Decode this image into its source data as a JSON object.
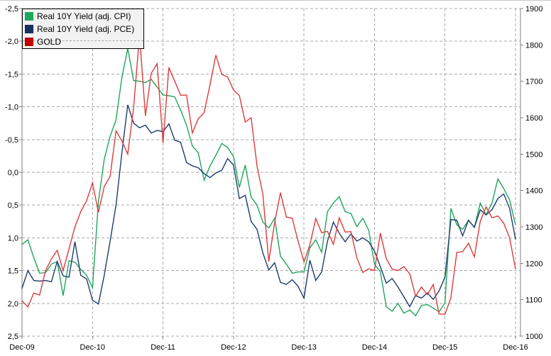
{
  "legend": {
    "position": "top-left",
    "items": [
      {
        "label": "Real 10Y Yield (adj. CPI)",
        "swatch_color": "#1FA85C"
      },
      {
        "label": "Real 10Y Yield (adj. PCE)",
        "swatch_color": "#16325C"
      },
      {
        "label": "GOLD",
        "swatch_color": "#C00000"
      }
    ]
  },
  "chart_data": {
    "type": "line",
    "frequency": "monthly",
    "x_start_label": "Dec-09",
    "x_end_label": "Dec-16",
    "x_tick_labels": [
      "Dec-09",
      "Dec-10",
      "Dec-11",
      "Dec-12",
      "Dec-13",
      "Dec-14",
      "Dec-15",
      "Dec-16"
    ],
    "left_axis": {
      "min": -2.5,
      "max": 2.5,
      "step": 0.5,
      "inverted": true,
      "ticks": [
        -2.5,
        -2.0,
        -1.5,
        -1.0,
        -0.5,
        0.0,
        0.5,
        1.0,
        1.5,
        2.0,
        2.5
      ],
      "tick_labels": [
        "-2,5",
        "-2,0",
        "-1,5",
        "-1,0",
        "-0,5",
        "0,0",
        "0,5",
        "1,0",
        "1,5",
        "2,0",
        "2,5"
      ]
    },
    "right_axis": {
      "min": 1000,
      "max": 1900,
      "step": 100,
      "ticks": [
        1900,
        1800,
        1700,
        1600,
        1500,
        1400,
        1300,
        1200,
        1100,
        1000
      ],
      "tick_labels": [
        "1900",
        "1800",
        "1700",
        "1600",
        "1500",
        "1400",
        "1300",
        "1200",
        "1100",
        "1000"
      ]
    },
    "grid": {
      "horizontal": true,
      "vertical": true,
      "style": "dashed",
      "color": "#A8A8A8"
    },
    "series": [
      {
        "name": "Real 10Y Yield (adj. CPI)",
        "axis": "left",
        "color": "#22A55C",
        "values": [
          1.1,
          1.03,
          1.3,
          1.54,
          1.53,
          1.4,
          1.36,
          1.88,
          1.35,
          1.37,
          1.48,
          1.57,
          1.76,
          0.45,
          -0.2,
          -0.55,
          -0.8,
          -1.45,
          -1.89,
          -1.4,
          -1.39,
          -1.37,
          -1.42,
          -1.3,
          -1.18,
          -1.17,
          -1.15,
          -0.95,
          -0.72,
          -0.4,
          -0.3,
          0.12,
          -0.1,
          -0.26,
          -0.44,
          -0.38,
          -0.24,
          0.23,
          -0.11,
          0.38,
          0.5,
          0.76,
          0.85,
          0.7,
          1.28,
          1.4,
          1.54,
          1.52,
          1.52,
          1.15,
          1.03,
          1.22,
          0.6,
          0.47,
          0.37,
          0.6,
          0.63,
          0.83,
          0.7,
          0.88,
          1.4,
          1.52,
          2.05,
          2.12,
          2.0,
          2.15,
          2.1,
          2.19,
          2.03,
          2.02,
          2.07,
          2.13,
          1.99,
          0.55,
          0.8,
          0.87,
          0.73,
          0.84,
          0.47,
          0.65,
          0.47,
          0.1,
          0.25,
          0.42,
          0.8
        ]
      },
      {
        "name": "Real 10Y Yield (adj. PCE)",
        "axis": "left",
        "color": "#1E3C6E",
        "values": [
          1.77,
          1.5,
          1.65,
          1.66,
          1.65,
          1.67,
          1.36,
          1.58,
          1.6,
          1.06,
          1.57,
          1.63,
          1.95,
          2.01,
          1.57,
          1.05,
          0.5,
          -0.3,
          -1.03,
          -0.75,
          -0.68,
          -0.72,
          -0.6,
          -0.64,
          -0.62,
          -0.74,
          -0.49,
          -0.46,
          -0.15,
          -0.1,
          -0.07,
          0.02,
          0.08,
          0.01,
          -0.03,
          -0.21,
          -0.11,
          0.4,
          0.35,
          0.75,
          0.87,
          1.23,
          1.49,
          1.38,
          1.68,
          1.71,
          1.64,
          1.74,
          1.92,
          1.34,
          1.65,
          1.52,
          1.05,
          0.76,
          0.93,
          1.06,
          0.94,
          1.05,
          1.0,
          1.06,
          1.2,
          1.44,
          1.69,
          1.62,
          1.75,
          1.9,
          2.05,
          1.88,
          1.92,
          1.84,
          1.94,
          1.81,
          1.6,
          0.72,
          0.73,
          0.97,
          0.73,
          0.84,
          0.57,
          0.65,
          0.57,
          0.4,
          0.33,
          0.55,
          1.02
        ]
      },
      {
        "name": "GOLD",
        "axis": "right",
        "color": "#DC3C3C",
        "values": [
          1097,
          1080,
          1118,
          1113,
          1180,
          1212,
          1236,
          1180,
          1240,
          1300,
          1342,
          1372,
          1421,
          1340,
          1411,
          1439,
          1564,
          1536,
          1500,
          1628,
          1827,
          1605,
          1722,
          1748,
          1531,
          1738,
          1700,
          1662,
          1662,
          1558,
          1597,
          1614,
          1691,
          1772,
          1719,
          1712,
          1676,
          1661,
          1588,
          1600,
          1467,
          1390,
          1205,
          1312,
          1394,
          1327,
          1324,
          1260,
          1204,
          1251,
          1323,
          1284,
          1288,
          1252,
          1325,
          1286,
          1287,
          1215,
          1175,
          1185,
          1180,
          1283,
          1213,
          1184,
          1180,
          1191,
          1171,
          1110,
          1135,
          1114,
          1142,
          1061,
          1060,
          1105,
          1230,
          1232,
          1255,
          1218,
          1316,
          1355,
          1325,
          1330,
          1310,
          1270,
          1185
        ]
      }
    ]
  }
}
